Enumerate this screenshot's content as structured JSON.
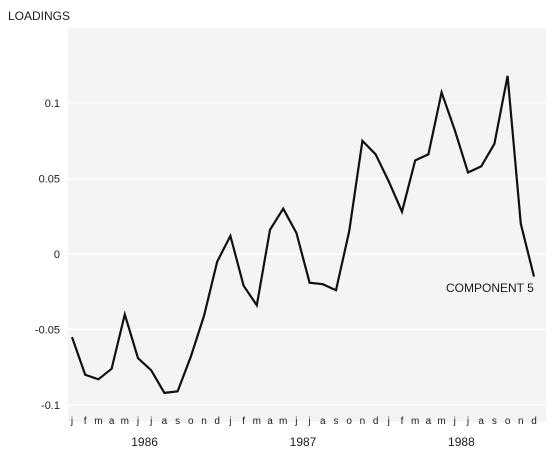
{
  "chart_data": {
    "type": "line",
    "ylabel": "LOADINGS",
    "ylim": [
      -0.1,
      0.12
    ],
    "y_ticks": [
      -0.1,
      -0.05,
      0,
      0.05,
      0.1
    ],
    "y_tick_labels": [
      "-0.1",
      "-0.05",
      "0",
      "0.05",
      "0.1"
    ],
    "month_labels": [
      "j",
      "f",
      "m",
      "a",
      "m",
      "j",
      "j",
      "a",
      "s",
      "o",
      "n",
      "d",
      "j",
      "f",
      "m",
      "a",
      "m",
      "j",
      "j",
      "a",
      "s",
      "o",
      "n",
      "d",
      "j",
      "f",
      "m",
      "a",
      "m",
      "j",
      "j",
      "a",
      "s",
      "o",
      "n",
      "d"
    ],
    "year_labels": [
      "1986",
      "1987",
      "1988"
    ],
    "grid": true,
    "series": [
      {
        "name": "COMPONENT 5",
        "color": "#111111",
        "x": [
          "1986-01",
          "1986-02",
          "1986-03",
          "1986-04",
          "1986-05",
          "1986-06",
          "1986-07",
          "1986-08",
          "1986-09",
          "1986-10",
          "1986-11",
          "1986-12",
          "1987-01",
          "1987-02",
          "1987-03",
          "1987-04",
          "1987-05",
          "1987-06",
          "1987-07",
          "1987-08",
          "1987-09",
          "1987-10",
          "1987-11",
          "1987-12",
          "1988-01",
          "1988-02",
          "1988-03",
          "1988-04",
          "1988-05",
          "1988-06",
          "1988-07",
          "1988-08",
          "1988-09",
          "1988-10",
          "1988-11",
          "1988-12"
        ],
        "values": [
          -0.055,
          -0.08,
          -0.083,
          -0.076,
          -0.04,
          -0.069,
          -0.077,
          -0.092,
          -0.091,
          -0.068,
          -0.041,
          -0.005,
          0.012,
          -0.021,
          -0.034,
          0.016,
          0.03,
          0.014,
          -0.019,
          -0.02,
          -0.024,
          0.015,
          0.075,
          0.066,
          0.048,
          0.028,
          0.062,
          0.066,
          0.107,
          0.082,
          0.054,
          0.058,
          0.073,
          0.118,
          0.02,
          -0.015
        ]
      }
    ]
  }
}
